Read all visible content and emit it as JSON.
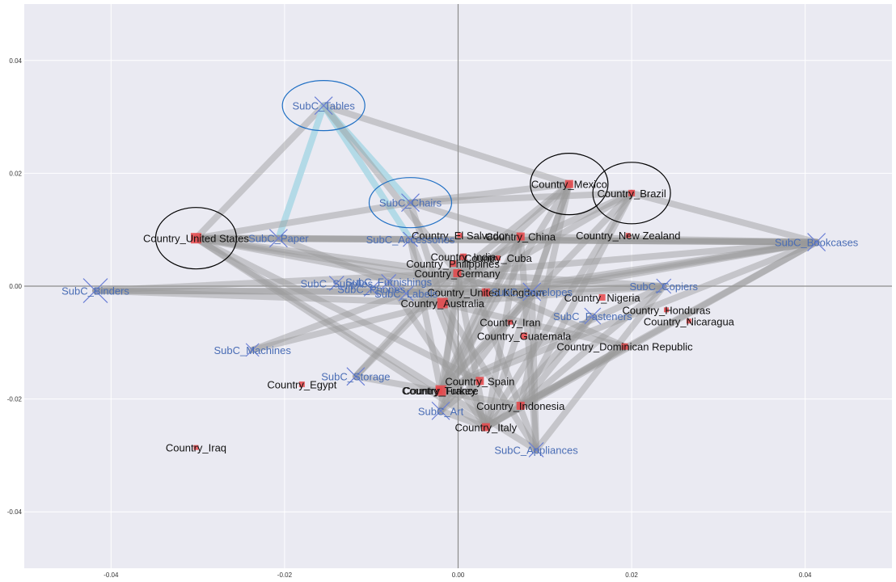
{
  "chart_data": {
    "type": "scatter",
    "title": "",
    "xlabel": "",
    "ylabel": "",
    "xlim": [
      -0.05,
      0.05
    ],
    "ylim": [
      -0.05,
      0.05
    ],
    "grid": true,
    "xticks": [
      -0.04,
      -0.02,
      0.0,
      0.02,
      0.04
    ],
    "yticks": [
      -0.04,
      -0.02,
      0.0,
      0.02,
      0.04
    ],
    "xtick_labels": [
      "-0.04",
      "-0.02",
      "0.00",
      "0.02",
      "0.04"
    ],
    "ytick_labels": [
      "-0.04",
      "-0.02",
      "0.00",
      "0.02",
      "0.04"
    ],
    "colors": {
      "background": "#eaeaf2",
      "grid": "#ffffff",
      "axis_line": "#8c8c8c",
      "edge": "#999999",
      "edge_highlight": "#add8e6",
      "country_marker": "#e8474a",
      "subc_marker": "#6b7fd6",
      "subc_text": "#4a6db5",
      "country_text": "#111111",
      "circle_subc": "#1f6fc4",
      "circle_country": "#000000"
    },
    "series": [
      {
        "name": "",
        "marker": "square",
        "points": [
          {
            "label": "Country_United States",
            "x": -0.0302,
            "y": 0.0085,
            "size": 13
          },
          {
            "label": "Country_Mexico",
            "x": 0.0128,
            "y": 0.0181,
            "size": 10
          },
          {
            "label": "Country_Brazil",
            "x": 0.02,
            "y": 0.0165,
            "size": 8
          },
          {
            "label": "Country_El Salvador",
            "x": 0.0002,
            "y": 0.009,
            "size": 6
          },
          {
            "label": "Country_China",
            "x": 0.0072,
            "y": 0.0088,
            "size": 10
          },
          {
            "label": "Country_New Zealand",
            "x": 0.0196,
            "y": 0.009,
            "size": 6
          },
          {
            "label": "Country_India",
            "x": 0.0006,
            "y": 0.0052,
            "size": 8
          },
          {
            "label": "Country_Cuba",
            "x": 0.0046,
            "y": 0.005,
            "size": 6
          },
          {
            "label": "Country_Philippines",
            "x": -0.0006,
            "y": 0.004,
            "size": 8
          },
          {
            "label": "Country_Germany",
            "x": -0.0001,
            "y": 0.0023,
            "size": 10
          },
          {
            "label": "Country_United Kingdom",
            "x": 0.0032,
            "y": -0.0011,
            "size": 10
          },
          {
            "label": "Country_Australia",
            "x": -0.0018,
            "y": -0.003,
            "size": 13
          },
          {
            "label": "Country_Nigeria",
            "x": 0.0166,
            "y": -0.002,
            "size": 8
          },
          {
            "label": "Country_Honduras",
            "x": 0.024,
            "y": -0.0042,
            "size": 6
          },
          {
            "label": "Country_Nicaragua",
            "x": 0.0266,
            "y": -0.0062,
            "size": 6
          },
          {
            "label": "Country_Iran",
            "x": 0.006,
            "y": -0.0064,
            "size": 6
          },
          {
            "label": "Country_Guatemala",
            "x": 0.0076,
            "y": -0.0088,
            "size": 8
          },
          {
            "label": "Country_Dominican Republic",
            "x": 0.0192,
            "y": -0.0107,
            "size": 8
          },
          {
            "label": "Country_Egypt",
            "x": -0.018,
            "y": -0.0174,
            "size": 7
          },
          {
            "label": "Country_Spain",
            "x": 0.0025,
            "y": -0.0168,
            "size": 10
          },
          {
            "label": "Country_Turkey",
            "x": -0.0022,
            "y": -0.0185,
            "size": 8
          },
          {
            "label": "Country_France",
            "x": -0.002,
            "y": -0.0185,
            "size": 13
          },
          {
            "label": "Country_Indonesia",
            "x": 0.0072,
            "y": -0.0212,
            "size": 10
          },
          {
            "label": "Country_Italy",
            "x": 0.0032,
            "y": -0.025,
            "size": 10
          },
          {
            "label": "Country_Iraq",
            "x": -0.0302,
            "y": -0.0286,
            "size": 6
          }
        ]
      },
      {
        "name": "",
        "marker": "x",
        "points": [
          {
            "label": "SubC_Tables",
            "x": -0.0155,
            "y": 0.032,
            "size": 22
          },
          {
            "label": "SubC_Chairs",
            "x": -0.0055,
            "y": 0.0148,
            "size": 22
          },
          {
            "label": "SubC_Paper",
            "x": -0.0207,
            "y": 0.0085,
            "size": 22
          },
          {
            "label": "SubC_Accessories",
            "x": -0.0055,
            "y": 0.0083,
            "size": 18
          },
          {
            "label": "SubC_Binders",
            "x": -0.0418,
            "y": -0.0008,
            "size": 30
          },
          {
            "label": "SubC_Supplies",
            "x": -0.014,
            "y": 0.0005,
            "size": 18
          },
          {
            "label": "SubC_Furnishings",
            "x": -0.008,
            "y": 0.0008,
            "size": 18
          },
          {
            "label": "SubC_Phones",
            "x": -0.01,
            "y": -0.0005,
            "size": 18
          },
          {
            "label": "SubC_Labels",
            "x": -0.006,
            "y": -0.0013,
            "size": 18
          },
          {
            "label": "SubC_Envelopes",
            "x": 0.0085,
            "y": -0.001,
            "size": 22
          },
          {
            "label": "SubC_Copiers",
            "x": 0.0237,
            "y": 0.0,
            "size": 18
          },
          {
            "label": "SubC_Fasteners",
            "x": 0.0155,
            "y": -0.0053,
            "size": 20
          },
          {
            "label": "SubC_Bookcases",
            "x": 0.0413,
            "y": 0.0078,
            "size": 22
          },
          {
            "label": "SubC_Machines",
            "x": -0.0237,
            "y": -0.0113,
            "size": 16
          },
          {
            "label": "SubC_Storage",
            "x": -0.0118,
            "y": -0.016,
            "size": 22
          },
          {
            "label": "SubC_Art",
            "x": -0.002,
            "y": -0.0221,
            "size": 22
          },
          {
            "label": "SubC_Appliances",
            "x": 0.009,
            "y": -0.029,
            "size": 18
          }
        ]
      }
    ],
    "edges": [
      [
        "SubC_Tables",
        "Country_United States",
        0
      ],
      [
        "SubC_Tables",
        "Country_Mexico",
        0
      ],
      [
        "SubC_Tables",
        "SubC_Paper",
        1
      ],
      [
        "SubC_Tables",
        "SubC_Chairs",
        1
      ],
      [
        "SubC_Tables",
        "SubC_Accessories",
        1
      ],
      [
        "SubC_Tables",
        "Country_Germany",
        0
      ],
      [
        "SubC_Chairs",
        "Country_Mexico",
        0
      ],
      [
        "SubC_Chairs",
        "Country_United States",
        0
      ],
      [
        "SubC_Chairs",
        "Country_Brazil",
        0
      ],
      [
        "SubC_Chairs",
        "Country_China",
        0
      ],
      [
        "SubC_Chairs",
        "Country_Australia",
        0
      ],
      [
        "SubC_Paper",
        "Country_United States",
        0
      ],
      [
        "SubC_Paper",
        "SubC_Bookcases",
        0
      ],
      [
        "SubC_Paper",
        "Country_Australia",
        0
      ],
      [
        "Country_United States",
        "SubC_Bookcases",
        0
      ],
      [
        "Country_United States",
        "Country_Germany",
        0
      ],
      [
        "Country_United States",
        "Country_France",
        0
      ],
      [
        "Country_United States",
        "Country_United Kingdom",
        0
      ],
      [
        "Country_United States",
        "SubC_Envelopes",
        0
      ],
      [
        "Country_United States",
        "Country_Italy",
        0
      ],
      [
        "Country_United States",
        "Country_Spain",
        0
      ],
      [
        "Country_United States",
        "SubC_Accessories",
        0
      ],
      [
        "Country_Mexico",
        "Country_Australia",
        0
      ],
      [
        "Country_Mexico",
        "Country_France",
        0
      ],
      [
        "Country_Mexico",
        "Country_Indonesia",
        0
      ],
      [
        "Country_Mexico",
        "SubC_Envelopes",
        0
      ],
      [
        "Country_Mexico",
        "Country_Italy",
        0
      ],
      [
        "Country_Mexico",
        "Country_Germany",
        0
      ],
      [
        "Country_Brazil",
        "SubC_Bookcases",
        0
      ],
      [
        "Country_Brazil",
        "Country_Indonesia",
        0
      ],
      [
        "Country_Brazil",
        "Country_France",
        0
      ],
      [
        "Country_Brazil",
        "Country_Australia",
        0
      ],
      [
        "Country_Brazil",
        "Country_Germany",
        0
      ],
      [
        "Country_Brazil",
        "Country_Italy",
        0
      ],
      [
        "SubC_Bookcases",
        "SubC_Accessories",
        0
      ],
      [
        "SubC_Bookcases",
        "Country_Germany",
        0
      ],
      [
        "SubC_Bookcases",
        "Country_Australia",
        0
      ],
      [
        "SubC_Bookcases",
        "SubC_Envelopes",
        0
      ],
      [
        "SubC_Bookcases",
        "Country_France",
        0
      ],
      [
        "SubC_Bookcases",
        "Country_Indonesia",
        0
      ],
      [
        "SubC_Bookcases",
        "Country_Italy",
        0
      ],
      [
        "SubC_Bookcases",
        "Country_China",
        0
      ],
      [
        "SubC_Bookcases",
        "Country_United Kingdom",
        0
      ],
      [
        "SubC_Copiers",
        "Country_Germany",
        0
      ],
      [
        "SubC_Copiers",
        "Country_Australia",
        0
      ],
      [
        "SubC_Copiers",
        "Country_France",
        0
      ],
      [
        "SubC_Copiers",
        "Country_Indonesia",
        0
      ],
      [
        "SubC_Copiers",
        "Country_United Kingdom",
        0
      ],
      [
        "SubC_Copiers",
        "SubC_Appliances",
        0
      ],
      [
        "Country_Dominican Republic",
        "Country_Italy",
        0
      ],
      [
        "Country_Dominican Republic",
        "Country_Indonesia",
        0
      ],
      [
        "Country_Dominican Republic",
        "Country_Germany",
        0
      ],
      [
        "Country_Dominican Republic",
        "Country_Australia",
        0
      ],
      [
        "Country_China",
        "Country_France",
        0
      ],
      [
        "Country_China",
        "Country_Italy",
        0
      ],
      [
        "Country_China",
        "SubC_Appliances",
        0
      ],
      [
        "Country_China",
        "Country_Australia",
        0
      ],
      [
        "Country_China",
        "SubC_Art",
        0
      ],
      [
        "Country_India",
        "Country_France",
        0
      ],
      [
        "Country_India",
        "SubC_Appliances",
        0
      ],
      [
        "Country_Germany",
        "Country_Italy",
        0
      ],
      [
        "Country_Germany",
        "SubC_Art",
        0
      ],
      [
        "Country_Germany",
        "SubC_Storage",
        0
      ],
      [
        "Country_Australia",
        "Country_Italy",
        0
      ],
      [
        "Country_Australia",
        "SubC_Appliances",
        0
      ],
      [
        "Country_United Kingdom",
        "Country_France",
        0
      ],
      [
        "Country_United Kingdom",
        "SubC_Machines",
        0
      ],
      [
        "SubC_Binders",
        "Country_Germany",
        0
      ],
      [
        "SubC_Binders",
        "Country_United Kingdom",
        0
      ],
      [
        "SubC_Binders",
        "SubC_Envelopes",
        0
      ],
      [
        "SubC_Binders",
        "Country_Australia",
        0
      ],
      [
        "SubC_Machines",
        "Country_Germany",
        0
      ],
      [
        "SubC_Storage",
        "Country_India",
        0
      ],
      [
        "SubC_Storage",
        "Country_Indonesia",
        0
      ],
      [
        "SubC_Envelopes",
        "Country_France",
        0
      ],
      [
        "SubC_Envelopes",
        "SubC_Art",
        0
      ],
      [
        "SubC_Envelopes",
        "SubC_Appliances",
        0
      ],
      [
        "SubC_Fasteners",
        "Country_Italy",
        0
      ],
      [
        "SubC_Fasteners",
        "Country_Indonesia",
        0
      ],
      [
        "Country_France",
        "SubC_Appliances",
        0
      ],
      [
        "Country_Indonesia",
        "Country_Italy",
        0
      ],
      [
        "SubC_Art",
        "Country_Italy",
        0
      ],
      [
        "Country_Spain",
        "SubC_Art",
        0
      ],
      [
        "SubC_Accessories",
        "Country_France",
        0
      ],
      [
        "SubC_Accessories",
        "Country_Italy",
        0
      ],
      [
        "SubC_Supplies",
        "Country_Australia",
        0
      ],
      [
        "SubC_Furnishings",
        "Country_Italy",
        0
      ]
    ],
    "circled": [
      "SubC_Tables",
      "SubC_Chairs",
      "Country_Mexico",
      "Country_Brazil",
      "Country_United States"
    ]
  }
}
